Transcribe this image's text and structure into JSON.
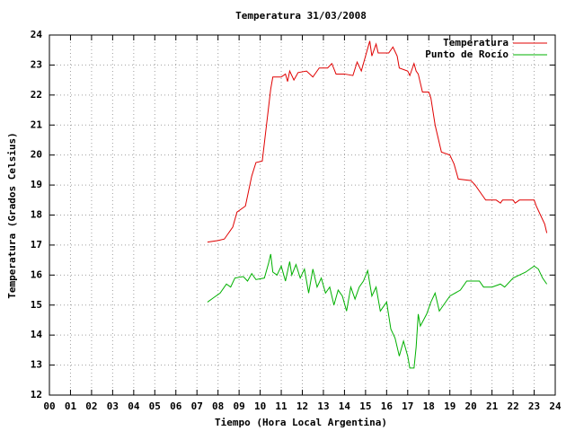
{
  "chart_data": {
    "type": "line",
    "title": "Temperatura 31/03/2008",
    "xlabel": "Tiempo (Hora Local Argentina)",
    "ylabel": "Temperatura (Grados Celsius)",
    "xlim": [
      0,
      24
    ],
    "ylim": [
      12,
      24
    ],
    "xticks": [
      {
        "value": 0,
        "label": "00"
      },
      {
        "value": 1,
        "label": "01"
      },
      {
        "value": 2,
        "label": "02"
      },
      {
        "value": 3,
        "label": "03"
      },
      {
        "value": 4,
        "label": "04"
      },
      {
        "value": 5,
        "label": "05"
      },
      {
        "value": 6,
        "label": "06"
      },
      {
        "value": 7,
        "label": "07"
      },
      {
        "value": 8,
        "label": "08"
      },
      {
        "value": 9,
        "label": "09"
      },
      10,
      11,
      12,
      13,
      14,
      15,
      16,
      17,
      18,
      19,
      20,
      21,
      22,
      23,
      24
    ],
    "yticks": [
      12,
      13,
      14,
      15,
      16,
      17,
      18,
      19,
      20,
      21,
      22,
      23,
      24
    ],
    "grid": true,
    "legend": "top-right",
    "series": [
      {
        "name": "Temperatura",
        "color": "#e00000",
        "x": [
          7.5,
          8.0,
          8.3,
          8.7,
          8.9,
          9.3,
          9.6,
          9.8,
          10.1,
          10.3,
          10.5,
          10.6,
          11.0,
          11.2,
          11.3,
          11.4,
          11.6,
          11.8,
          12.2,
          12.5,
          12.8,
          13.2,
          13.4,
          13.6,
          14.0,
          14.4,
          14.6,
          14.8,
          15.0,
          15.2,
          15.3,
          15.5,
          15.6,
          16.1,
          16.3,
          16.5,
          16.6,
          17.0,
          17.1,
          17.3,
          17.4,
          17.5,
          17.7,
          18.0,
          18.1,
          18.3,
          18.6,
          19.0,
          19.2,
          19.4,
          20.0,
          20.2,
          20.5,
          20.7,
          21.2,
          21.4,
          21.5,
          22.0,
          22.1,
          22.3,
          23.0,
          23.1,
          23.3,
          23.5,
          23.6
        ],
        "values": [
          17.1,
          17.15,
          17.2,
          17.6,
          18.1,
          18.3,
          19.3,
          19.75,
          19.8,
          21.0,
          22.2,
          22.6,
          22.6,
          22.7,
          22.45,
          22.8,
          22.5,
          22.75,
          22.8,
          22.6,
          22.9,
          22.9,
          23.05,
          22.7,
          22.7,
          22.65,
          23.1,
          22.8,
          23.3,
          23.8,
          23.3,
          23.7,
          23.4,
          23.4,
          23.6,
          23.3,
          22.9,
          22.8,
          22.65,
          23.05,
          22.8,
          22.7,
          22.1,
          22.1,
          21.9,
          21.0,
          20.1,
          20.0,
          19.7,
          19.2,
          19.15,
          19.0,
          18.7,
          18.5,
          18.5,
          18.4,
          18.5,
          18.5,
          18.4,
          18.5,
          18.5,
          18.3,
          18.0,
          17.7,
          17.4
        ]
      },
      {
        "name": "Punto de Rocío",
        "color": "#00b000",
        "x": [
          7.5,
          7.8,
          8.1,
          8.4,
          8.6,
          8.8,
          9.2,
          9.4,
          9.6,
          9.8,
          10.2,
          10.4,
          10.5,
          10.6,
          10.8,
          11.0,
          11.2,
          11.4,
          11.5,
          11.7,
          11.9,
          12.1,
          12.3,
          12.5,
          12.7,
          12.9,
          13.1,
          13.3,
          13.5,
          13.7,
          13.9,
          14.1,
          14.3,
          14.5,
          14.7,
          14.9,
          15.1,
          15.3,
          15.5,
          15.7,
          16.0,
          16.2,
          16.4,
          16.6,
          16.8,
          17.0,
          17.1,
          17.3,
          17.4,
          17.5,
          17.6,
          17.9,
          18.1,
          18.3,
          18.5,
          18.7,
          19.0,
          19.5,
          19.8,
          20.1,
          20.4,
          20.6,
          21.0,
          21.4,
          21.6,
          22.0,
          22.3,
          22.6,
          23.0,
          23.2,
          23.4,
          23.6
        ],
        "values": [
          15.1,
          15.25,
          15.4,
          15.7,
          15.6,
          15.9,
          15.95,
          15.8,
          16.05,
          15.85,
          15.9,
          16.4,
          16.7,
          16.1,
          16.0,
          16.3,
          15.8,
          16.45,
          16.0,
          16.35,
          15.9,
          16.2,
          15.4,
          16.2,
          15.6,
          15.9,
          15.4,
          15.6,
          15.0,
          15.5,
          15.3,
          14.8,
          15.6,
          15.2,
          15.6,
          15.8,
          16.15,
          15.3,
          15.6,
          14.8,
          15.1,
          14.2,
          13.9,
          13.3,
          13.8,
          13.3,
          12.9,
          12.9,
          13.6,
          14.7,
          14.3,
          14.7,
          15.1,
          15.4,
          14.8,
          15.0,
          15.3,
          15.5,
          15.8,
          15.8,
          15.8,
          15.6,
          15.6,
          15.7,
          15.6,
          15.9,
          16.0,
          16.1,
          16.3,
          16.2,
          15.9,
          15.7
        ]
      }
    ]
  }
}
